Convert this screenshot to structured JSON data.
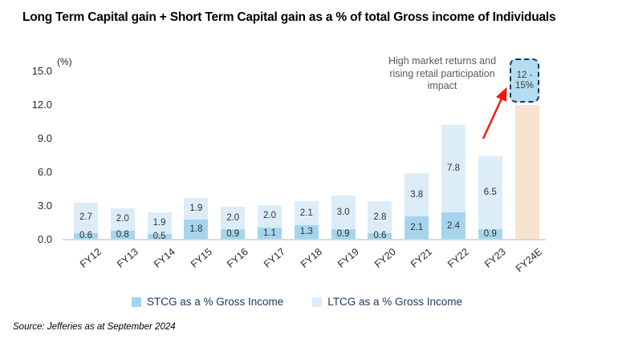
{
  "title": "Long Term Capital gain + Short Term Capital gain as a % of total Gross income of Individuals",
  "source": "Source: Jefferies as at September 2024",
  "chart_data": {
    "type": "bar",
    "stacked": true,
    "title": "Long Term Capital gain + Short Term Capital gain as a % of total Gross income of Individuals",
    "unit": "(%)",
    "categories": [
      "FY12",
      "FY13",
      "FY14",
      "FY15",
      "FY16",
      "FY17",
      "FY18",
      "FY19",
      "FY20",
      "FY21",
      "FY22",
      "FY23",
      "FY24E"
    ],
    "series": [
      {
        "name": "STCG as a % Gross Income",
        "color": "#a5d5ee",
        "values": [
          0.6,
          0.8,
          0.5,
          1.8,
          0.9,
          1.1,
          1.3,
          0.9,
          0.6,
          2.1,
          2.4,
          0.9,
          null
        ]
      },
      {
        "name": "LTCG as a % Gross Income",
        "color": "#dcedf8",
        "values": [
          2.7,
          2.0,
          1.9,
          1.9,
          2.0,
          2.0,
          2.1,
          3.0,
          2.8,
          3.8,
          7.8,
          6.5,
          null
        ]
      }
    ],
    "forecast": {
      "category": "FY24E",
      "label": "12 - 15%",
      "bar_top_value": 12,
      "color": "#f8e3d1"
    },
    "annotation": "High market returns and rising retail participation impact",
    "y_ticks": [
      "15.0",
      "12.0",
      "9.0",
      "6.0",
      "3.0",
      "0.0"
    ],
    "ylim": [
      0,
      15
    ],
    "grid": false,
    "legend_position": "bottom",
    "colors": {
      "callout_fill": "#b4ddf1",
      "callout_border": "#17375e",
      "arrow": "#f8150c",
      "axis_line": "#d9d9d9",
      "legend_text": "#1f3a60",
      "annotation_text": "#595959"
    }
  }
}
